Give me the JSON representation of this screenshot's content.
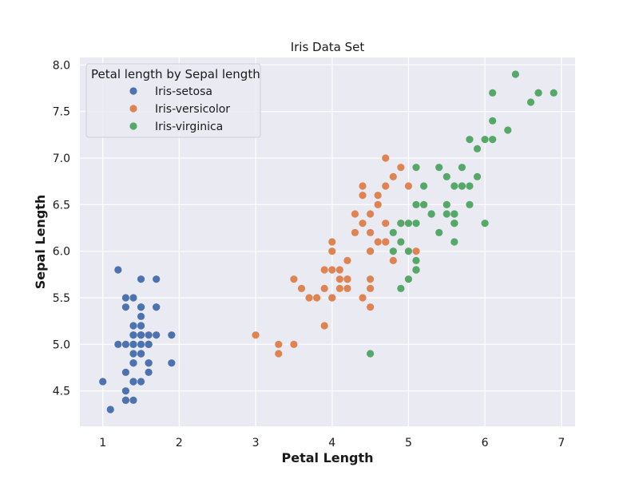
{
  "chart_data": {
    "type": "scatter",
    "title": "Iris Data Set",
    "xlabel": "Petal Length",
    "ylabel": "Sepal Length",
    "xlim": [
      0.7,
      7.18
    ],
    "ylim": [
      4.12,
      8.08
    ],
    "xticks": [
      1,
      2,
      3,
      4,
      5,
      6,
      7
    ],
    "xtick_labels": [
      "1",
      "2",
      "3",
      "4",
      "5",
      "6",
      "7"
    ],
    "yticks": [
      4.5,
      5.0,
      5.5,
      6.0,
      6.5,
      7.0,
      7.5,
      8.0
    ],
    "ytick_labels": [
      "4.5",
      "5.0",
      "5.5",
      "6.0",
      "6.5",
      "7.0",
      "7.5",
      "8.0"
    ],
    "grid": true,
    "background": "#eaeaf2",
    "legend": {
      "title": "Petal length by Sepal length",
      "placement": "top-left"
    },
    "series": [
      {
        "name": "Iris-setosa",
        "color": "#4c72b0",
        "points": [
          [
            1.4,
            5.1
          ],
          [
            1.4,
            4.9
          ],
          [
            1.3,
            4.7
          ],
          [
            1.5,
            4.6
          ],
          [
            1.4,
            5.0
          ],
          [
            1.7,
            5.4
          ],
          [
            1.4,
            4.6
          ],
          [
            1.5,
            5.0
          ],
          [
            1.4,
            4.4
          ],
          [
            1.5,
            4.9
          ],
          [
            1.5,
            5.4
          ],
          [
            1.6,
            4.8
          ],
          [
            1.4,
            4.8
          ],
          [
            1.1,
            4.3
          ],
          [
            1.2,
            5.8
          ],
          [
            1.5,
            5.7
          ],
          [
            1.3,
            5.4
          ],
          [
            1.4,
            5.1
          ],
          [
            1.7,
            5.7
          ],
          [
            1.5,
            5.1
          ],
          [
            1.7,
            5.4
          ],
          [
            1.5,
            5.1
          ],
          [
            1.0,
            4.6
          ],
          [
            1.7,
            5.1
          ],
          [
            1.9,
            4.8
          ],
          [
            1.6,
            5.0
          ],
          [
            1.6,
            5.0
          ],
          [
            1.5,
            5.2
          ],
          [
            1.4,
            5.2
          ],
          [
            1.6,
            4.7
          ],
          [
            1.6,
            4.8
          ],
          [
            1.5,
            5.4
          ],
          [
            1.5,
            5.2
          ],
          [
            1.4,
            5.5
          ],
          [
            1.5,
            4.9
          ],
          [
            1.2,
            5.0
          ],
          [
            1.3,
            5.5
          ],
          [
            1.5,
            4.9
          ],
          [
            1.3,
            4.4
          ],
          [
            1.5,
            5.1
          ],
          [
            1.3,
            5.0
          ],
          [
            1.3,
            4.5
          ],
          [
            1.3,
            4.4
          ],
          [
            1.6,
            5.0
          ],
          [
            1.9,
            5.1
          ],
          [
            1.4,
            4.8
          ],
          [
            1.6,
            5.1
          ],
          [
            1.4,
            4.6
          ],
          [
            1.5,
            5.3
          ],
          [
            1.4,
            5.0
          ]
        ]
      },
      {
        "name": "Iris-versicolor",
        "color": "#dd8452",
        "points": [
          [
            4.7,
            7.0
          ],
          [
            4.5,
            6.4
          ],
          [
            4.9,
            6.9
          ],
          [
            4.0,
            5.5
          ],
          [
            4.6,
            6.5
          ],
          [
            4.5,
            5.7
          ],
          [
            4.7,
            6.3
          ],
          [
            3.3,
            4.9
          ],
          [
            4.6,
            6.6
          ],
          [
            3.9,
            5.2
          ],
          [
            3.5,
            5.0
          ],
          [
            4.2,
            5.9
          ],
          [
            4.0,
            6.0
          ],
          [
            4.7,
            6.1
          ],
          [
            3.6,
            5.6
          ],
          [
            4.4,
            6.7
          ],
          [
            4.5,
            5.6
          ],
          [
            4.1,
            5.8
          ],
          [
            4.5,
            6.2
          ],
          [
            3.9,
            5.6
          ],
          [
            4.8,
            5.9
          ],
          [
            4.0,
            6.1
          ],
          [
            4.9,
            6.3
          ],
          [
            4.7,
            6.1
          ],
          [
            4.3,
            6.4
          ],
          [
            4.4,
            6.6
          ],
          [
            4.8,
            6.8
          ],
          [
            5.0,
            6.7
          ],
          [
            4.5,
            6.0
          ],
          [
            3.5,
            5.7
          ],
          [
            3.8,
            5.5
          ],
          [
            3.7,
            5.5
          ],
          [
            3.9,
            5.8
          ],
          [
            5.1,
            6.0
          ],
          [
            4.5,
            5.4
          ],
          [
            4.5,
            6.0
          ],
          [
            4.7,
            6.7
          ],
          [
            4.4,
            6.3
          ],
          [
            4.1,
            5.6
          ],
          [
            4.0,
            5.5
          ],
          [
            4.4,
            5.5
          ],
          [
            4.6,
            6.1
          ],
          [
            4.0,
            5.8
          ],
          [
            3.3,
            5.0
          ],
          [
            4.2,
            5.6
          ],
          [
            4.2,
            5.7
          ],
          [
            4.2,
            5.7
          ],
          [
            4.3,
            6.2
          ],
          [
            3.0,
            5.1
          ],
          [
            4.1,
            5.7
          ]
        ]
      },
      {
        "name": "Iris-virginica",
        "color": "#55a868",
        "points": [
          [
            6.0,
            6.3
          ],
          [
            5.1,
            5.8
          ],
          [
            5.9,
            7.1
          ],
          [
            5.6,
            6.3
          ],
          [
            5.8,
            6.5
          ],
          [
            6.6,
            7.6
          ],
          [
            4.5,
            4.9
          ],
          [
            6.3,
            7.3
          ],
          [
            5.8,
            6.7
          ],
          [
            6.1,
            7.2
          ],
          [
            5.1,
            6.5
          ],
          [
            5.3,
            6.4
          ],
          [
            5.5,
            6.8
          ],
          [
            5.0,
            5.7
          ],
          [
            5.1,
            5.8
          ],
          [
            5.3,
            6.4
          ],
          [
            5.5,
            6.5
          ],
          [
            6.7,
            7.7
          ],
          [
            6.9,
            7.7
          ],
          [
            5.0,
            6.0
          ],
          [
            5.7,
            6.9
          ],
          [
            4.9,
            5.6
          ],
          [
            6.7,
            7.7
          ],
          [
            4.9,
            6.3
          ],
          [
            5.7,
            6.7
          ],
          [
            6.0,
            7.2
          ],
          [
            4.8,
            6.2
          ],
          [
            4.9,
            6.1
          ],
          [
            5.6,
            6.4
          ],
          [
            5.8,
            7.2
          ],
          [
            6.1,
            7.4
          ],
          [
            6.4,
            7.9
          ],
          [
            5.6,
            6.4
          ],
          [
            5.1,
            6.3
          ],
          [
            5.6,
            6.1
          ],
          [
            6.1,
            7.7
          ],
          [
            5.6,
            6.3
          ],
          [
            5.5,
            6.4
          ],
          [
            4.8,
            6.0
          ],
          [
            5.4,
            6.9
          ],
          [
            5.6,
            6.7
          ],
          [
            5.1,
            6.9
          ],
          [
            5.1,
            5.8
          ],
          [
            5.9,
            6.8
          ],
          [
            5.7,
            6.7
          ],
          [
            5.2,
            6.7
          ],
          [
            5.0,
            6.3
          ],
          [
            5.2,
            6.5
          ],
          [
            5.4,
            6.2
          ],
          [
            5.1,
            5.9
          ]
        ]
      }
    ]
  }
}
